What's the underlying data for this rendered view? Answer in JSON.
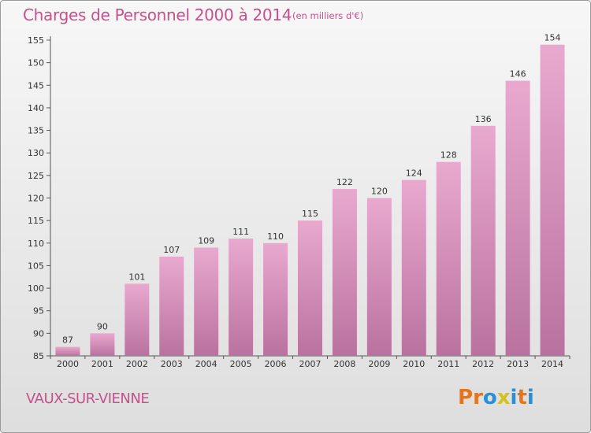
{
  "header": {
    "title": "Charges de Personnel 2000 à 2014",
    "subtitle": "(en milliers d'€)"
  },
  "footer": {
    "place": "VAUX-SUR-VIENNE",
    "logo": "Proxiti",
    "logo_colors": [
      "#e8741a",
      "#e8741a",
      "#2a8fd6",
      "#d4c21a",
      "#2a8fd6",
      "#e8741a",
      "#2a8fd6"
    ]
  },
  "colors": {
    "text": "#c8508c",
    "bar_top": "#e9a9cf",
    "bar_bottom": "#b9729f",
    "axis": "#555555"
  },
  "chart_data": {
    "type": "bar",
    "title": "Charges de Personnel 2000 à 2014",
    "xlabel": "",
    "ylabel": "",
    "categories": [
      "2000",
      "2001",
      "2002",
      "2003",
      "2004",
      "2005",
      "2006",
      "2007",
      "2008",
      "2009",
      "2010",
      "2011",
      "2012",
      "2013",
      "2014"
    ],
    "values": [
      87,
      90,
      101,
      107,
      109,
      111,
      110,
      115,
      122,
      120,
      124,
      128,
      136,
      146,
      154
    ],
    "ylim": [
      85,
      155
    ],
    "yticks": [
      85,
      90,
      95,
      100,
      105,
      110,
      115,
      120,
      125,
      130,
      135,
      140,
      145,
      150,
      155
    ],
    "grid": false,
    "data_labels": true
  }
}
